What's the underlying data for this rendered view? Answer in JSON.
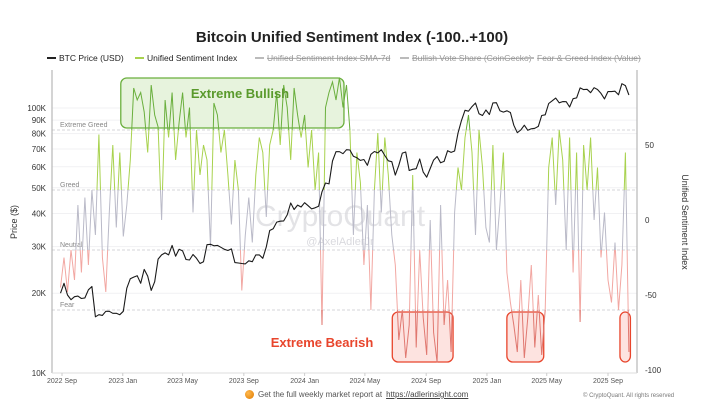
{
  "chart_data": {
    "type": "line",
    "title": "Bitcoin Unified Sentiment Index (-100..+100)",
    "legend": [
      {
        "label": "BTC Price (USD)",
        "color": "#222222",
        "active": true
      },
      {
        "label": "Unified Sentiment Index",
        "color": "#a8d24e",
        "active": true
      },
      {
        "label": "Unified Sentiment Index SMA-7d",
        "color": "#bbbbbb",
        "active": false
      },
      {
        "label": "Bullish Vote Share (CoinGecko)",
        "color": "#bbbbbb",
        "active": false
      },
      {
        "label": "Fear & Greed Index (Value)",
        "color": "#bbbbbb",
        "active": false
      }
    ],
    "legend_position": "top",
    "ylabel_left": "Price ($)",
    "ylabel_right": "Unified Sentiment Index",
    "y_left_scale": "log",
    "y_left_range": [
      10000,
      130000
    ],
    "y_left_ticks": [
      {
        "value": 10000,
        "label": "10K"
      },
      {
        "value": 20000,
        "label": "20K"
      },
      {
        "value": 30000,
        "label": "30K"
      },
      {
        "value": 40000,
        "label": "40K"
      },
      {
        "value": 50000,
        "label": "50K"
      },
      {
        "value": 60000,
        "label": "60K"
      },
      {
        "value": 70000,
        "label": "70K"
      },
      {
        "value": 80000,
        "label": "80K"
      },
      {
        "value": 90000,
        "label": "90K"
      },
      {
        "value": 100000,
        "label": "100K"
      }
    ],
    "y_right_range": [
      -100,
      100
    ],
    "y_right_ticks": [
      {
        "value": 50,
        "label": "50"
      },
      {
        "value": 0,
        "label": "0"
      },
      {
        "value": -50,
        "label": "-50"
      },
      {
        "value": -100,
        "label": "-100"
      }
    ],
    "x_ticks": [
      {
        "date": "2022-09-01",
        "label": "2022 Sep"
      },
      {
        "date": "2023-01-01",
        "label": "2023 Jan"
      },
      {
        "date": "2023-05-01",
        "label": "2023 May"
      },
      {
        "date": "2023-09-01",
        "label": "2023 Sep"
      },
      {
        "date": "2024-01-01",
        "label": "2024 Jan"
      },
      {
        "date": "2024-05-01",
        "label": "2024 May"
      },
      {
        "date": "2024-09-01",
        "label": "2024 Sep"
      },
      {
        "date": "2025-01-01",
        "label": "2025 Jan"
      },
      {
        "date": "2025-05-01",
        "label": "2025 May"
      },
      {
        "date": "2025-09-01",
        "label": "2025 Sep"
      }
    ],
    "thresholds": [
      {
        "value": 60,
        "label": "Extreme Greed"
      },
      {
        "value": 20,
        "label": "Greed"
      },
      {
        "value": -20,
        "label": "Neutral"
      },
      {
        "value": -60,
        "label": "Fear"
      }
    ],
    "zone_colors": {
      "extreme_greed": "#6aaf3d",
      "greed": "#a8d24e",
      "neutral": "#babac8",
      "fear": "#f2a7a2",
      "extreme_fear": "#e07870"
    },
    "annotations": {
      "bullish": {
        "label": "Extreme Bullish",
        "color": "#5a9a2c",
        "ranges": [
          [
            "2022-12-28",
            "2024-03-20"
          ]
        ]
      },
      "bearish": {
        "label": "Extreme Bearish",
        "color": "#e8452c",
        "ranges": [
          [
            "2024-06-25",
            "2024-10-25"
          ],
          [
            "2025-02-10",
            "2025-04-25"
          ],
          [
            "2025-09-25",
            "2025-10-16"
          ]
        ]
      }
    },
    "grid": true,
    "dates": [
      "2022-08-29",
      "2022-09-05",
      "2022-09-12",
      "2022-09-19",
      "2022-09-26",
      "2022-10-03",
      "2022-10-10",
      "2022-10-17",
      "2022-10-24",
      "2022-10-31",
      "2022-11-07",
      "2022-11-14",
      "2022-11-21",
      "2022-11-28",
      "2022-12-05",
      "2022-12-12",
      "2022-12-19",
      "2022-12-26",
      "2023-01-02",
      "2023-01-09",
      "2023-01-16",
      "2023-01-23",
      "2023-01-30",
      "2023-02-06",
      "2023-02-13",
      "2023-02-20",
      "2023-02-27",
      "2023-03-06",
      "2023-03-13",
      "2023-03-20",
      "2023-03-27",
      "2023-04-03",
      "2023-04-10",
      "2023-04-17",
      "2023-04-24",
      "2023-05-01",
      "2023-05-08",
      "2023-05-15",
      "2023-05-22",
      "2023-05-29",
      "2023-06-05",
      "2023-06-12",
      "2023-06-19",
      "2023-06-26",
      "2023-07-03",
      "2023-07-10",
      "2023-07-17",
      "2023-07-24",
      "2023-07-31",
      "2023-08-07",
      "2023-08-14",
      "2023-08-21",
      "2023-08-28",
      "2023-09-04",
      "2023-09-11",
      "2023-09-18",
      "2023-09-25",
      "2023-10-02",
      "2023-10-09",
      "2023-10-16",
      "2023-10-23",
      "2023-10-30",
      "2023-11-06",
      "2023-11-13",
      "2023-11-20",
      "2023-11-27",
      "2023-12-04",
      "2023-12-11",
      "2023-12-18",
      "2023-12-25",
      "2024-01-01",
      "2024-01-08",
      "2024-01-15",
      "2024-01-22",
      "2024-01-29",
      "2024-02-05",
      "2024-02-12",
      "2024-02-19",
      "2024-02-26",
      "2024-03-04",
      "2024-03-11",
      "2024-03-18",
      "2024-03-25",
      "2024-04-01",
      "2024-04-08",
      "2024-04-15",
      "2024-04-22",
      "2024-04-29",
      "2024-05-06",
      "2024-05-13",
      "2024-05-20",
      "2024-05-27",
      "2024-06-03",
      "2024-06-10",
      "2024-06-17",
      "2024-06-24",
      "2024-07-01",
      "2024-07-08",
      "2024-07-15",
      "2024-07-22",
      "2024-07-29",
      "2024-08-05",
      "2024-08-12",
      "2024-08-19",
      "2024-08-26",
      "2024-09-02",
      "2024-09-09",
      "2024-09-16",
      "2024-09-23",
      "2024-09-30",
      "2024-10-07",
      "2024-10-14",
      "2024-10-21",
      "2024-10-28",
      "2024-11-04",
      "2024-11-11",
      "2024-11-18",
      "2024-11-25",
      "2024-12-02",
      "2024-12-09",
      "2024-12-16",
      "2024-12-23",
      "2024-12-30",
      "2025-01-06",
      "2025-01-13",
      "2025-01-20",
      "2025-01-27",
      "2025-02-03",
      "2025-02-10",
      "2025-02-17",
      "2025-02-24",
      "2025-03-03",
      "2025-03-10",
      "2025-03-17",
      "2025-03-24",
      "2025-03-31",
      "2025-04-07",
      "2025-04-14",
      "2025-04-21",
      "2025-04-28",
      "2025-05-05",
      "2025-05-12",
      "2025-05-19",
      "2025-05-26",
      "2025-06-02",
      "2025-06-09",
      "2025-06-16",
      "2025-06-23",
      "2025-06-30",
      "2025-07-07",
      "2025-07-14",
      "2025-07-21",
      "2025-07-28",
      "2025-08-04",
      "2025-08-11",
      "2025-08-18",
      "2025-08-25",
      "2025-09-01",
      "2025-09-08",
      "2025-09-15",
      "2025-09-22",
      "2025-09-29",
      "2025-10-06",
      "2025-10-13"
    ],
    "series": [
      {
        "name": "BTC Price (USD)",
        "axis": "left",
        "values": [
          20000,
          21800,
          19700,
          18900,
          19400,
          19500,
          19100,
          19200,
          20600,
          21200,
          16300,
          16600,
          16500,
          17100,
          17100,
          16800,
          16800,
          16600,
          17100,
          20900,
          22700,
          23000,
          23300,
          21800,
          24600,
          23200,
          20500,
          22100,
          26900,
          27900,
          28400,
          27900,
          30300,
          27600,
          29300,
          28900,
          26800,
          26700,
          28000,
          27100,
          25900,
          26300,
          30500,
          30600,
          30200,
          30300,
          29800,
          29300,
          29000,
          29400,
          26100,
          26000,
          25900,
          25800,
          26500,
          26300,
          27900,
          27900,
          27100,
          29900,
          34500,
          35000,
          37100,
          37400,
          37500,
          39500,
          43800,
          41400,
          43000,
          42300,
          43900,
          42800,
          41600,
          42000,
          42600,
          48300,
          52100,
          51700,
          63100,
          68400,
          68400,
          67200,
          69600,
          69400,
          65700,
          64900,
          63400,
          63900,
          60800,
          66900,
          68500,
          67700,
          69600,
          66200,
          63200,
          62700,
          55800,
          60800,
          67600,
          68200,
          58100,
          58700,
          59000,
          64200,
          57300,
          54800,
          59100,
          63600,
          65600,
          62100,
          62900,
          69000,
          68000,
          68800,
          80400,
          89800,
          98000,
          97300,
          101200,
          104400,
          95200,
          93700,
          98300,
          94500,
          104500,
          104700,
          97700,
          96500,
          97600,
          96200,
          86100,
          80700,
          82600,
          86100,
          82400,
          83500,
          83800,
          85200,
          93700,
          94300,
          104000,
          106500,
          109000,
          104600,
          105700,
          105600,
          100900,
          108400,
          109200,
          119100,
          117300,
          117600,
          114200,
          119300,
          117400,
          113500,
          108200,
          115400,
          115300,
          115700,
          112200,
          123500,
          121500,
          112000
        ]
      },
      {
        "name": "Unified Sentiment Index",
        "axis": "right",
        "values": [
          -45,
          -25,
          -48,
          -20,
          -40,
          10,
          -35,
          15,
          -30,
          20,
          -10,
          57,
          -25,
          -48,
          5,
          50,
          -5,
          45,
          -11,
          10,
          40,
          88,
          80,
          85,
          72,
          45,
          90,
          70,
          62,
          0,
          80,
          55,
          85,
          40,
          65,
          85,
          55,
          75,
          5,
          60,
          30,
          50,
          40,
          -18,
          78,
          70,
          45,
          60,
          30,
          -3,
          40,
          20,
          -47,
          -10,
          15,
          -15,
          30,
          55,
          45,
          2,
          50,
          60,
          85,
          50,
          90,
          75,
          40,
          88,
          70,
          55,
          70,
          35,
          60,
          20,
          45,
          -70,
          75,
          85,
          92,
          80,
          95,
          75,
          90,
          60,
          -10,
          45,
          25,
          -30,
          10,
          -60,
          20,
          58,
          5,
          55,
          30,
          -10,
          -30,
          -80,
          -60,
          -92,
          -70,
          30,
          -85,
          -20,
          -65,
          -90,
          0,
          -75,
          -95,
          10,
          -70,
          -40,
          -88,
          5,
          35,
          20,
          55,
          70,
          45,
          -10,
          60,
          35,
          -5,
          -15,
          50,
          -20,
          10,
          45,
          -35,
          -55,
          -70,
          -88,
          -40,
          -92,
          -65,
          -30,
          -85,
          -50,
          -90,
          -60,
          35,
          55,
          10,
          60,
          40,
          -20,
          55,
          -35,
          45,
          -68,
          50,
          20,
          55,
          0,
          35,
          -25,
          5,
          -40,
          -55,
          -15,
          -60,
          -30,
          45,
          -88
        ]
      }
    ]
  },
  "watermark": {
    "brand": "CryptoQuant",
    "handle": "@AxelAdlerJr"
  },
  "footer": {
    "text": "Get the full weekly market report at",
    "link": "https://adlerinsight.com",
    "copyright": "© CryptoQuant. All rights reserved"
  }
}
